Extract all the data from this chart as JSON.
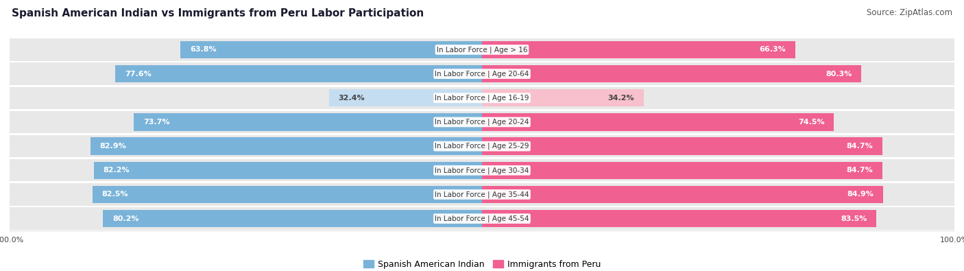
{
  "title": "Spanish American Indian vs Immigrants from Peru Labor Participation",
  "source": "Source: ZipAtlas.com",
  "categories": [
    "In Labor Force | Age > 16",
    "In Labor Force | Age 20-64",
    "In Labor Force | Age 16-19",
    "In Labor Force | Age 20-24",
    "In Labor Force | Age 25-29",
    "In Labor Force | Age 30-34",
    "In Labor Force | Age 35-44",
    "In Labor Force | Age 45-54"
  ],
  "blue_values": [
    63.8,
    77.6,
    32.4,
    73.7,
    82.9,
    82.2,
    82.5,
    80.2
  ],
  "pink_values": [
    66.3,
    80.3,
    34.2,
    74.5,
    84.7,
    84.7,
    84.9,
    83.5
  ],
  "blue_color": "#7ab3d9",
  "pink_color": "#f06090",
  "blue_light_color": "#c5ddf0",
  "pink_light_color": "#f7c0cc",
  "bg_row_color": "#e8e8e8",
  "max_val": 100.0,
  "legend_blue_label": "Spanish American Indian",
  "legend_pink_label": "Immigrants from Peru",
  "title_fontsize": 11,
  "source_fontsize": 8.5,
  "label_fontsize": 8,
  "category_fontsize": 7.5,
  "axis_label_fontsize": 8
}
